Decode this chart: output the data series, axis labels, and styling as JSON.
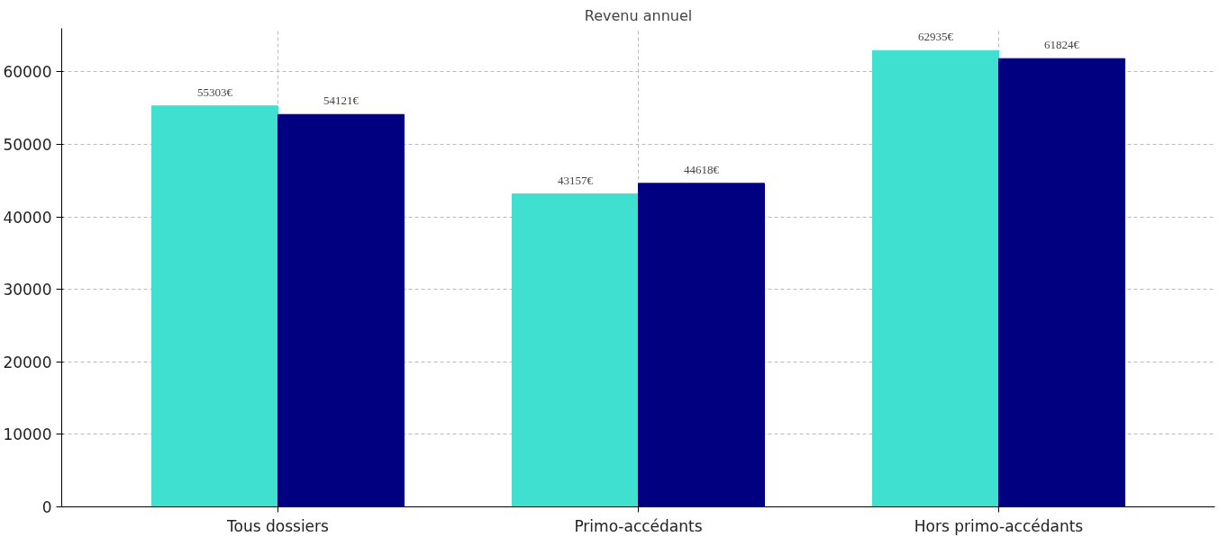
{
  "chart_data": {
    "type": "bar",
    "title": "Revenu annuel",
    "categories": [
      "Tous dossiers",
      "Primo-accédants",
      "Hors primo-accédants"
    ],
    "series": [
      {
        "color": "#40e0d0",
        "values": [
          55303,
          43157,
          62935
        ],
        "value_labels": [
          "55303€",
          "43157€",
          "62935€"
        ]
      },
      {
        "color": "#000080",
        "values": [
          54121,
          44618,
          61824
        ],
        "value_labels": [
          "54121€",
          "44618€",
          "61824€"
        ]
      }
    ],
    "ylim": [
      0,
      66000
    ],
    "yticks": [
      0,
      10000,
      20000,
      30000,
      40000,
      50000,
      60000
    ],
    "grid": true
  }
}
